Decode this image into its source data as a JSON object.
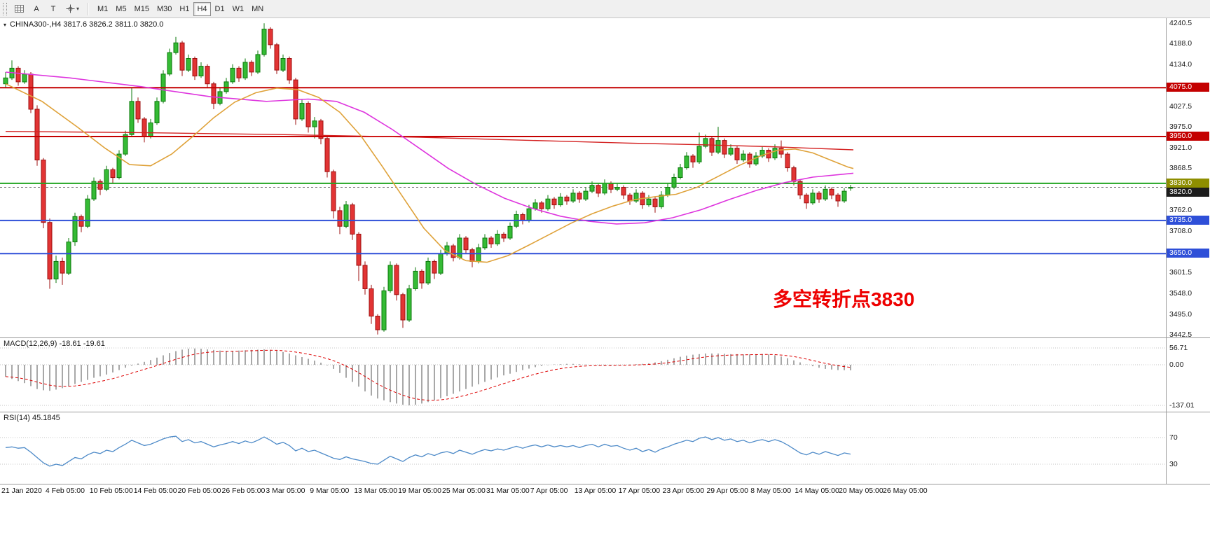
{
  "toolbar": {
    "a_label": "A",
    "t_label": "T",
    "timeframes": [
      "M1",
      "M5",
      "M15",
      "M30",
      "H1",
      "H4",
      "D1",
      "W1",
      "MN"
    ],
    "active_timeframe": "H4"
  },
  "chart": {
    "title": "CHINA300-,H4 3817.6 3826.2 3811.0 3820.0",
    "symbol": "CHINA300-",
    "timeframe": "H4",
    "open": "3817.6",
    "high": "3826.2",
    "low": "3811.0",
    "close": "3820.0",
    "annotation": {
      "text": "多空转折点3830",
      "color": "#ee0000"
    },
    "price_axis_labels": [
      "4240.5",
      "4188.0",
      "4134.0",
      "4027.5",
      "3975.0",
      "3921.0",
      "3868.5",
      "3762.0",
      "3708.0",
      "3601.5",
      "3548.0",
      "3495.0",
      "3442.5"
    ],
    "price_tags": [
      {
        "text": "4075.0",
        "price": 4075.0,
        "bg": "#c40000"
      },
      {
        "text": "3950.0",
        "price": 3950.0,
        "bg": "#c40000"
      },
      {
        "text": "3830.0",
        "price": 3830.0,
        "bg": "#8e8e00"
      },
      {
        "text": "3820.0",
        "price": 3820.0,
        "bg": "#1c1c1c"
      },
      {
        "text": "3735.0",
        "price": 3735.0,
        "bg": "#2e4fd8"
      },
      {
        "text": "3650.0",
        "price": 3650.0,
        "bg": "#2e4fd8"
      }
    ]
  },
  "indicators": {
    "macd": {
      "label": "MACD(12,26,9) -18.61 -19.61",
      "axis_labels": [
        "56.71",
        "0.00",
        "-137.01"
      ]
    },
    "rsi": {
      "label": "RSI(14) 45.1845",
      "axis_labels": [
        "70",
        "30"
      ]
    }
  },
  "time_axis": {
    "labels": [
      "21 Jan 2020",
      "4 Feb 05:00",
      "10 Feb 05:00",
      "14 Feb 05:00",
      "20 Feb 05:00",
      "26 Feb 05:00",
      "3 Mar 05:00",
      "9 Mar 05:00",
      "13 Mar 05:00",
      "19 Mar 05:00",
      "25 Mar 05:00",
      "31 Mar 05:00",
      "7 Apr 05:00",
      "13 Apr 05:00",
      "17 Apr 05:00",
      "23 Apr 05:00",
      "29 Apr 05:00",
      "8 May 05:00",
      "14 May 05:00",
      "20 May 05:00",
      "26 May 05:00"
    ]
  },
  "chart_data": {
    "type": "candlestick",
    "symbol": "CHINA300-",
    "timeframe": "H4",
    "price_range": [
      3442.5,
      4240.5
    ],
    "current_price": 3820.0,
    "hlines": [
      {
        "price": 4075.0,
        "color": "#c40000"
      },
      {
        "price": 3950.0,
        "color": "#c40000"
      },
      {
        "price": 3830.0,
        "color": "#23a523"
      },
      {
        "price": 3735.0,
        "color": "#2e4fd8"
      },
      {
        "price": 3650.0,
        "color": "#2e4fd8"
      }
    ],
    "candles": [
      [
        4085,
        4115,
        4075,
        4100
      ],
      [
        4100,
        4145,
        4095,
        4125
      ],
      [
        4125,
        4130,
        4080,
        4090
      ],
      [
        4090,
        4120,
        4085,
        4110
      ],
      [
        4110,
        4115,
        4010,
        4020
      ],
      [
        4020,
        4030,
        3875,
        3890
      ],
      [
        3890,
        3895,
        3715,
        3730
      ],
      [
        3730,
        3740,
        3560,
        3585
      ],
      [
        3585,
        3645,
        3575,
        3630
      ],
      [
        3630,
        3640,
        3570,
        3600
      ],
      [
        3600,
        3690,
        3595,
        3680
      ],
      [
        3680,
        3755,
        3670,
        3745
      ],
      [
        3745,
        3750,
        3705,
        3720
      ],
      [
        3720,
        3800,
        3715,
        3790
      ],
      [
        3790,
        3845,
        3785,
        3835
      ],
      [
        3835,
        3840,
        3800,
        3815
      ],
      [
        3815,
        3875,
        3810,
        3865
      ],
      [
        3865,
        3870,
        3830,
        3845
      ],
      [
        3845,
        3915,
        3840,
        3905
      ],
      [
        3905,
        3965,
        3900,
        3955
      ],
      [
        3955,
        4075,
        3950,
        4040
      ],
      [
        4040,
        4050,
        3985,
        3995
      ],
      [
        3995,
        4000,
        3935,
        3950
      ],
      [
        3950,
        3995,
        3945,
        3985
      ],
      [
        3985,
        4050,
        3980,
        4040
      ],
      [
        4040,
        4120,
        4035,
        4110
      ],
      [
        4110,
        4175,
        4105,
        4165
      ],
      [
        4165,
        4205,
        4160,
        4190
      ],
      [
        4190,
        4195,
        4105,
        4120
      ],
      [
        4120,
        4160,
        4115,
        4150
      ],
      [
        4150,
        4155,
        4095,
        4105
      ],
      [
        4105,
        4140,
        4100,
        4130
      ],
      [
        4130,
        4135,
        4075,
        4085
      ],
      [
        4085,
        4090,
        4020,
        4035
      ],
      [
        4035,
        4075,
        4030,
        4065
      ],
      [
        4065,
        4100,
        4060,
        4090
      ],
      [
        4090,
        4135,
        4085,
        4125
      ],
      [
        4125,
        4130,
        4090,
        4100
      ],
      [
        4100,
        4150,
        4095,
        4140
      ],
      [
        4140,
        4145,
        4105,
        4115
      ],
      [
        4115,
        4170,
        4110,
        4160
      ],
      [
        4160,
        4240,
        4155,
        4225
      ],
      [
        4225,
        4230,
        4175,
        4185
      ],
      [
        4185,
        4190,
        4110,
        4120
      ],
      [
        4120,
        4160,
        4115,
        4150
      ],
      [
        4150,
        4155,
        4085,
        4095
      ],
      [
        4095,
        4100,
        3980,
        3995
      ],
      [
        3995,
        4045,
        3990,
        4035
      ],
      [
        4035,
        4040,
        3960,
        3975
      ],
      [
        3975,
        4000,
        3945,
        3990
      ],
      [
        3990,
        3995,
        3930,
        3945
      ],
      [
        3945,
        3950,
        3845,
        3860
      ],
      [
        3860,
        3865,
        3740,
        3760
      ],
      [
        3760,
        3770,
        3700,
        3720
      ],
      [
        3720,
        3785,
        3715,
        3775
      ],
      [
        3775,
        3780,
        3685,
        3700
      ],
      [
        3700,
        3705,
        3580,
        3620
      ],
      [
        3620,
        3630,
        3545,
        3560
      ],
      [
        3560,
        3570,
        3470,
        3490
      ],
      [
        3490,
        3495,
        3443,
        3455
      ],
      [
        3455,
        3565,
        3450,
        3555
      ],
      [
        3555,
        3630,
        3550,
        3620
      ],
      [
        3620,
        3625,
        3530,
        3545
      ],
      [
        3545,
        3550,
        3460,
        3480
      ],
      [
        3480,
        3570,
        3475,
        3560
      ],
      [
        3560,
        3615,
        3555,
        3605
      ],
      [
        3605,
        3610,
        3560,
        3575
      ],
      [
        3575,
        3640,
        3570,
        3630
      ],
      [
        3630,
        3635,
        3585,
        3600
      ],
      [
        3600,
        3660,
        3595,
        3650
      ],
      [
        3650,
        3680,
        3645,
        3670
      ],
      [
        3670,
        3675,
        3630,
        3640
      ],
      [
        3640,
        3700,
        3635,
        3690
      ],
      [
        3690,
        3695,
        3650,
        3660
      ],
      [
        3660,
        3665,
        3615,
        3630
      ],
      [
        3630,
        3675,
        3625,
        3665
      ],
      [
        3665,
        3700,
        3660,
        3690
      ],
      [
        3690,
        3695,
        3665,
        3675
      ],
      [
        3675,
        3710,
        3670,
        3700
      ],
      [
        3700,
        3705,
        3680,
        3690
      ],
      [
        3690,
        3730,
        3685,
        3720
      ],
      [
        3720,
        3760,
        3715,
        3750
      ],
      [
        3750,
        3755,
        3725,
        3735
      ],
      [
        3735,
        3775,
        3730,
        3765
      ],
      [
        3765,
        3790,
        3760,
        3780
      ],
      [
        3780,
        3785,
        3755,
        3765
      ],
      [
        3765,
        3800,
        3760,
        3790
      ],
      [
        3790,
        3795,
        3765,
        3775
      ],
      [
        3775,
        3805,
        3770,
        3795
      ],
      [
        3795,
        3800,
        3775,
        3785
      ],
      [
        3785,
        3815,
        3780,
        3805
      ],
      [
        3805,
        3810,
        3780,
        3790
      ],
      [
        3790,
        3820,
        3785,
        3810
      ],
      [
        3810,
        3835,
        3805,
        3825
      ],
      [
        3825,
        3830,
        3795,
        3805
      ],
      [
        3805,
        3840,
        3800,
        3830
      ],
      [
        3830,
        3835,
        3805,
        3815
      ],
      [
        3815,
        3830,
        3810,
        3820
      ],
      [
        3820,
        3825,
        3790,
        3800
      ],
      [
        3800,
        3805,
        3775,
        3785
      ],
      [
        3785,
        3815,
        3780,
        3805
      ],
      [
        3805,
        3810,
        3765,
        3775
      ],
      [
        3775,
        3800,
        3770,
        3790
      ],
      [
        3790,
        3795,
        3755,
        3770
      ],
      [
        3770,
        3810,
        3765,
        3800
      ],
      [
        3800,
        3830,
        3795,
        3820
      ],
      [
        3820,
        3855,
        3815,
        3845
      ],
      [
        3845,
        3880,
        3840,
        3870
      ],
      [
        3870,
        3910,
        3865,
        3900
      ],
      [
        3900,
        3905,
        3870,
        3885
      ],
      [
        3885,
        3960,
        3880,
        3925
      ],
      [
        3925,
        3955,
        3920,
        3945
      ],
      [
        3945,
        3950,
        3900,
        3910
      ],
      [
        3910,
        3975,
        3905,
        3940
      ],
      [
        3940,
        3945,
        3895,
        3905
      ],
      [
        3905,
        3930,
        3900,
        3920
      ],
      [
        3920,
        3925,
        3880,
        3890
      ],
      [
        3890,
        3915,
        3885,
        3905
      ],
      [
        3905,
        3910,
        3870,
        3880
      ],
      [
        3880,
        3910,
        3875,
        3900
      ],
      [
        3900,
        3925,
        3895,
        3915
      ],
      [
        3915,
        3920,
        3885,
        3895
      ],
      [
        3895,
        3930,
        3890,
        3920
      ],
      [
        3920,
        3940,
        3895,
        3905
      ],
      [
        3905,
        3910,
        3860,
        3870
      ],
      [
        3870,
        3875,
        3825,
        3835
      ],
      [
        3835,
        3840,
        3790,
        3800
      ],
      [
        3800,
        3805,
        3765,
        3780
      ],
      [
        3780,
        3815,
        3775,
        3805
      ],
      [
        3805,
        3810,
        3780,
        3790
      ],
      [
        3790,
        3825,
        3785,
        3815
      ],
      [
        3815,
        3820,
        3790,
        3800
      ],
      [
        3800,
        3805,
        3770,
        3785
      ],
      [
        3785,
        3818,
        3780,
        3810
      ],
      [
        3817.6,
        3826.2,
        3811.0,
        3820.0
      ]
    ],
    "ma_orange": [
      [
        8,
        4085
      ],
      [
        60,
        4040
      ],
      [
        110,
        3975
      ],
      [
        150,
        3920
      ],
      [
        185,
        3878
      ],
      [
        215,
        3875
      ],
      [
        245,
        3905
      ],
      [
        275,
        3950
      ],
      [
        305,
        3998
      ],
      [
        335,
        4038
      ],
      [
        365,
        4062
      ],
      [
        395,
        4074
      ],
      [
        425,
        4070
      ],
      [
        455,
        4050
      ],
      [
        485,
        4012
      ],
      [
        515,
        3952
      ],
      [
        545,
        3875
      ],
      [
        575,
        3795
      ],
      [
        605,
        3715
      ],
      [
        635,
        3658
      ],
      [
        665,
        3632
      ],
      [
        695,
        3628
      ],
      [
        725,
        3645
      ],
      [
        755,
        3672
      ],
      [
        785,
        3700
      ],
      [
        815,
        3728
      ],
      [
        845,
        3752
      ],
      [
        875,
        3772
      ],
      [
        905,
        3788
      ],
      [
        935,
        3796
      ],
      [
        965,
        3802
      ],
      [
        995,
        3820
      ],
      [
        1025,
        3848
      ],
      [
        1055,
        3876
      ],
      [
        1085,
        3900
      ],
      [
        1110,
        3915
      ],
      [
        1135,
        3918
      ],
      [
        1160,
        3908
      ],
      [
        1185,
        3890
      ],
      [
        1210,
        3872
      ],
      [
        1218,
        3868
      ]
    ],
    "ma_magenta": [
      [
        8,
        4115
      ],
      [
        100,
        4100
      ],
      [
        200,
        4078
      ],
      [
        300,
        4052
      ],
      [
        380,
        4040
      ],
      [
        440,
        4046
      ],
      [
        480,
        4040
      ],
      [
        520,
        4012
      ],
      [
        560,
        3968
      ],
      [
        600,
        3918
      ],
      [
        640,
        3868
      ],
      [
        680,
        3827
      ],
      [
        720,
        3792
      ],
      [
        760,
        3766
      ],
      [
        800,
        3746
      ],
      [
        840,
        3733
      ],
      [
        880,
        3726
      ],
      [
        920,
        3729
      ],
      [
        960,
        3742
      ],
      [
        1000,
        3762
      ],
      [
        1040,
        3788
      ],
      [
        1080,
        3812
      ],
      [
        1120,
        3832
      ],
      [
        1160,
        3846
      ],
      [
        1218,
        3856
      ]
    ],
    "ma_red": [
      [
        8,
        3963
      ],
      [
        200,
        3960
      ],
      [
        400,
        3955
      ],
      [
        600,
        3948
      ],
      [
        700,
        3943
      ],
      [
        800,
        3938
      ],
      [
        900,
        3933
      ],
      [
        1000,
        3929
      ],
      [
        1100,
        3924
      ],
      [
        1218,
        3916
      ]
    ],
    "macd": {
      "axis": [
        56.71,
        0.0,
        -137.01
      ],
      "signal_period": 9,
      "values": [
        -40,
        -48,
        -55,
        -62,
        -72,
        -82,
        -86,
        -88,
        -84,
        -79,
        -72,
        -65,
        -58,
        -51,
        -44,
        -39,
        -33,
        -26,
        -18,
        -10,
        -3,
        4,
        10,
        16,
        24,
        32,
        40,
        46,
        51,
        54,
        55,
        54,
        52,
        50,
        48,
        47,
        47,
        48,
        49,
        50,
        51,
        52,
        50,
        47,
        43,
        38,
        32,
        26,
        20,
        14,
        7,
        -2,
        -14,
        -28,
        -44,
        -58,
        -74,
        -90,
        -104,
        -114,
        -120,
        -126,
        -131,
        -135,
        -137,
        -135,
        -131,
        -126,
        -120,
        -113,
        -106,
        -98,
        -90,
        -82,
        -74,
        -66,
        -58,
        -50,
        -43,
        -36,
        -30,
        -24,
        -18,
        -13,
        -8,
        -4,
        -1,
        1,
        2,
        3,
        3,
        2,
        1,
        0,
        -1,
        -2,
        -2,
        -1,
        0,
        1,
        2,
        3,
        5,
        8,
        12,
        17,
        22,
        27,
        31,
        34,
        36,
        38,
        38,
        38,
        37,
        36,
        36,
        35,
        35,
        36,
        36,
        35,
        32,
        28,
        22,
        15,
        8,
        1,
        -5,
        -10,
        -14,
        -16,
        -18,
        -18.5,
        -18.6
      ]
    },
    "rsi": {
      "period": 14,
      "levels": [
        30,
        70
      ],
      "values": [
        55,
        56,
        54,
        55,
        48,
        40,
        32,
        27,
        30,
        28,
        34,
        40,
        38,
        44,
        48,
        46,
        51,
        49,
        55,
        60,
        66,
        62,
        58,
        60,
        64,
        68,
        71,
        72,
        64,
        67,
        62,
        64,
        60,
        56,
        59,
        61,
        64,
        61,
        65,
        62,
        66,
        71,
        66,
        60,
        63,
        58,
        50,
        54,
        49,
        51,
        47,
        43,
        39,
        37,
        41,
        38,
        36,
        34,
        31,
        30,
        36,
        42,
        38,
        34,
        40,
        44,
        41,
        46,
        43,
        47,
        49,
        46,
        51,
        48,
        45,
        49,
        52,
        50,
        53,
        51,
        54,
        57,
        54,
        57,
        59,
        56,
        59,
        56,
        58,
        56,
        58,
        55,
        58,
        60,
        56,
        60,
        57,
        58,
        54,
        51,
        54,
        49,
        52,
        48,
        53,
        56,
        60,
        63,
        66,
        64,
        69,
        71,
        67,
        70,
        66,
        68,
        64,
        66,
        62,
        65,
        67,
        64,
        67,
        64,
        59,
        53,
        47,
        44,
        48,
        45,
        49,
        46,
        43,
        47,
        45.2
      ]
    },
    "colors": {
      "up": "#35bb35",
      "up_edge": "#0c7a0c",
      "down": "#e23434",
      "down_edge": "#9e0f0f",
      "ma_orange": "#dfa23a",
      "ma_magenta": "#de35de",
      "ma_red": "#d42222",
      "macd_hist": "#a8a8a8",
      "macd_signal": "#dd0000",
      "rsi_line": "#4d8ac8",
      "current_price_line": "#6a6a6a"
    }
  }
}
